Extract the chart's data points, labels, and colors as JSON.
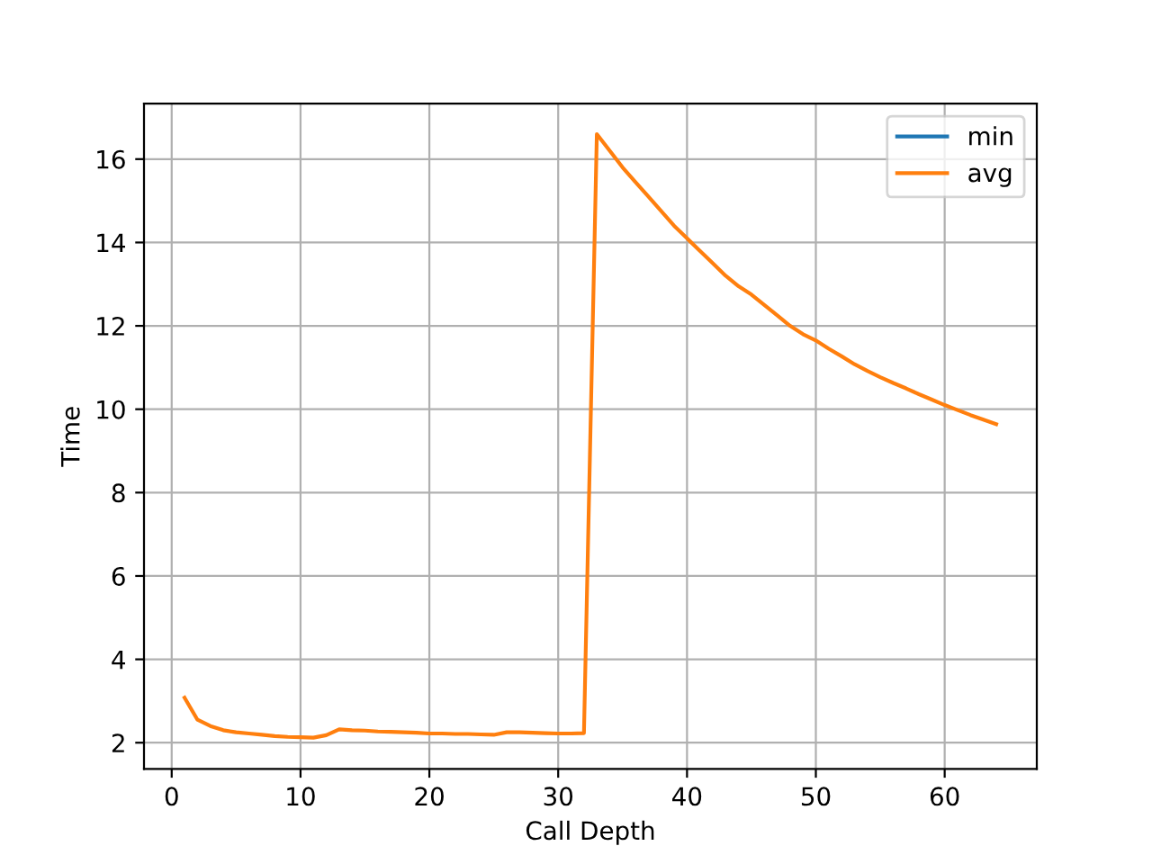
{
  "chart_data": {
    "type": "line",
    "xlabel": "Call Depth",
    "ylabel": "Time",
    "x": [
      1,
      2,
      3,
      4,
      5,
      6,
      7,
      8,
      9,
      10,
      11,
      12,
      13,
      14,
      15,
      16,
      17,
      18,
      19,
      20,
      21,
      22,
      23,
      24,
      25,
      26,
      27,
      28,
      29,
      30,
      31,
      32,
      33,
      34,
      35,
      36,
      37,
      38,
      39,
      40,
      41,
      42,
      43,
      44,
      45,
      46,
      47,
      48,
      49,
      50,
      51,
      52,
      53,
      54,
      55,
      56,
      57,
      58,
      59,
      60,
      61,
      62,
      63,
      64
    ],
    "series": [
      {
        "name": "min",
        "color": "#1f77b4",
        "values": [
          null,
          null,
          null,
          null,
          null,
          null,
          null,
          null,
          null,
          null,
          null,
          null,
          null,
          null,
          null,
          null,
          null,
          null,
          null,
          null,
          null,
          null,
          null,
          null,
          null,
          null,
          null,
          null,
          null,
          null,
          null,
          null,
          null,
          null,
          null,
          null,
          null,
          null,
          null,
          null,
          null,
          null,
          null,
          null,
          null,
          null,
          null,
          null,
          null,
          null,
          null,
          null,
          null,
          null,
          null,
          null,
          null,
          null,
          null,
          null,
          null,
          null,
          null,
          null
        ]
      },
      {
        "name": "avg",
        "color": "#ff7f0e",
        "values": [
          3.08,
          2.55,
          2.4,
          2.3,
          2.25,
          2.22,
          2.19,
          2.16,
          2.14,
          2.13,
          2.12,
          2.18,
          2.32,
          2.3,
          2.29,
          2.27,
          2.26,
          2.25,
          2.24,
          2.22,
          2.22,
          2.21,
          2.21,
          2.2,
          2.19,
          2.25,
          2.25,
          2.24,
          2.23,
          2.22,
          2.22,
          2.23,
          16.6,
          16.2,
          15.8,
          15.45,
          15.1,
          14.75,
          14.4,
          14.1,
          13.8,
          13.5,
          13.2,
          12.95,
          12.75,
          12.5,
          12.25,
          12.0,
          11.8,
          11.65,
          11.45,
          11.27,
          11.08,
          10.92,
          10.77,
          10.63,
          10.5,
          10.36,
          10.23,
          10.1,
          9.98,
          9.86,
          9.75,
          9.64
        ]
      }
    ],
    "xlim": [
      -2.15,
      67.15
    ],
    "ylim": [
      1.37,
      17.33
    ],
    "xticks": [
      0,
      10,
      20,
      30,
      40,
      50,
      60
    ],
    "yticks": [
      2,
      4,
      6,
      8,
      10,
      12,
      14,
      16
    ],
    "grid": true,
    "legend": "top right",
    "marker": "none",
    "line_style": "solid"
  }
}
